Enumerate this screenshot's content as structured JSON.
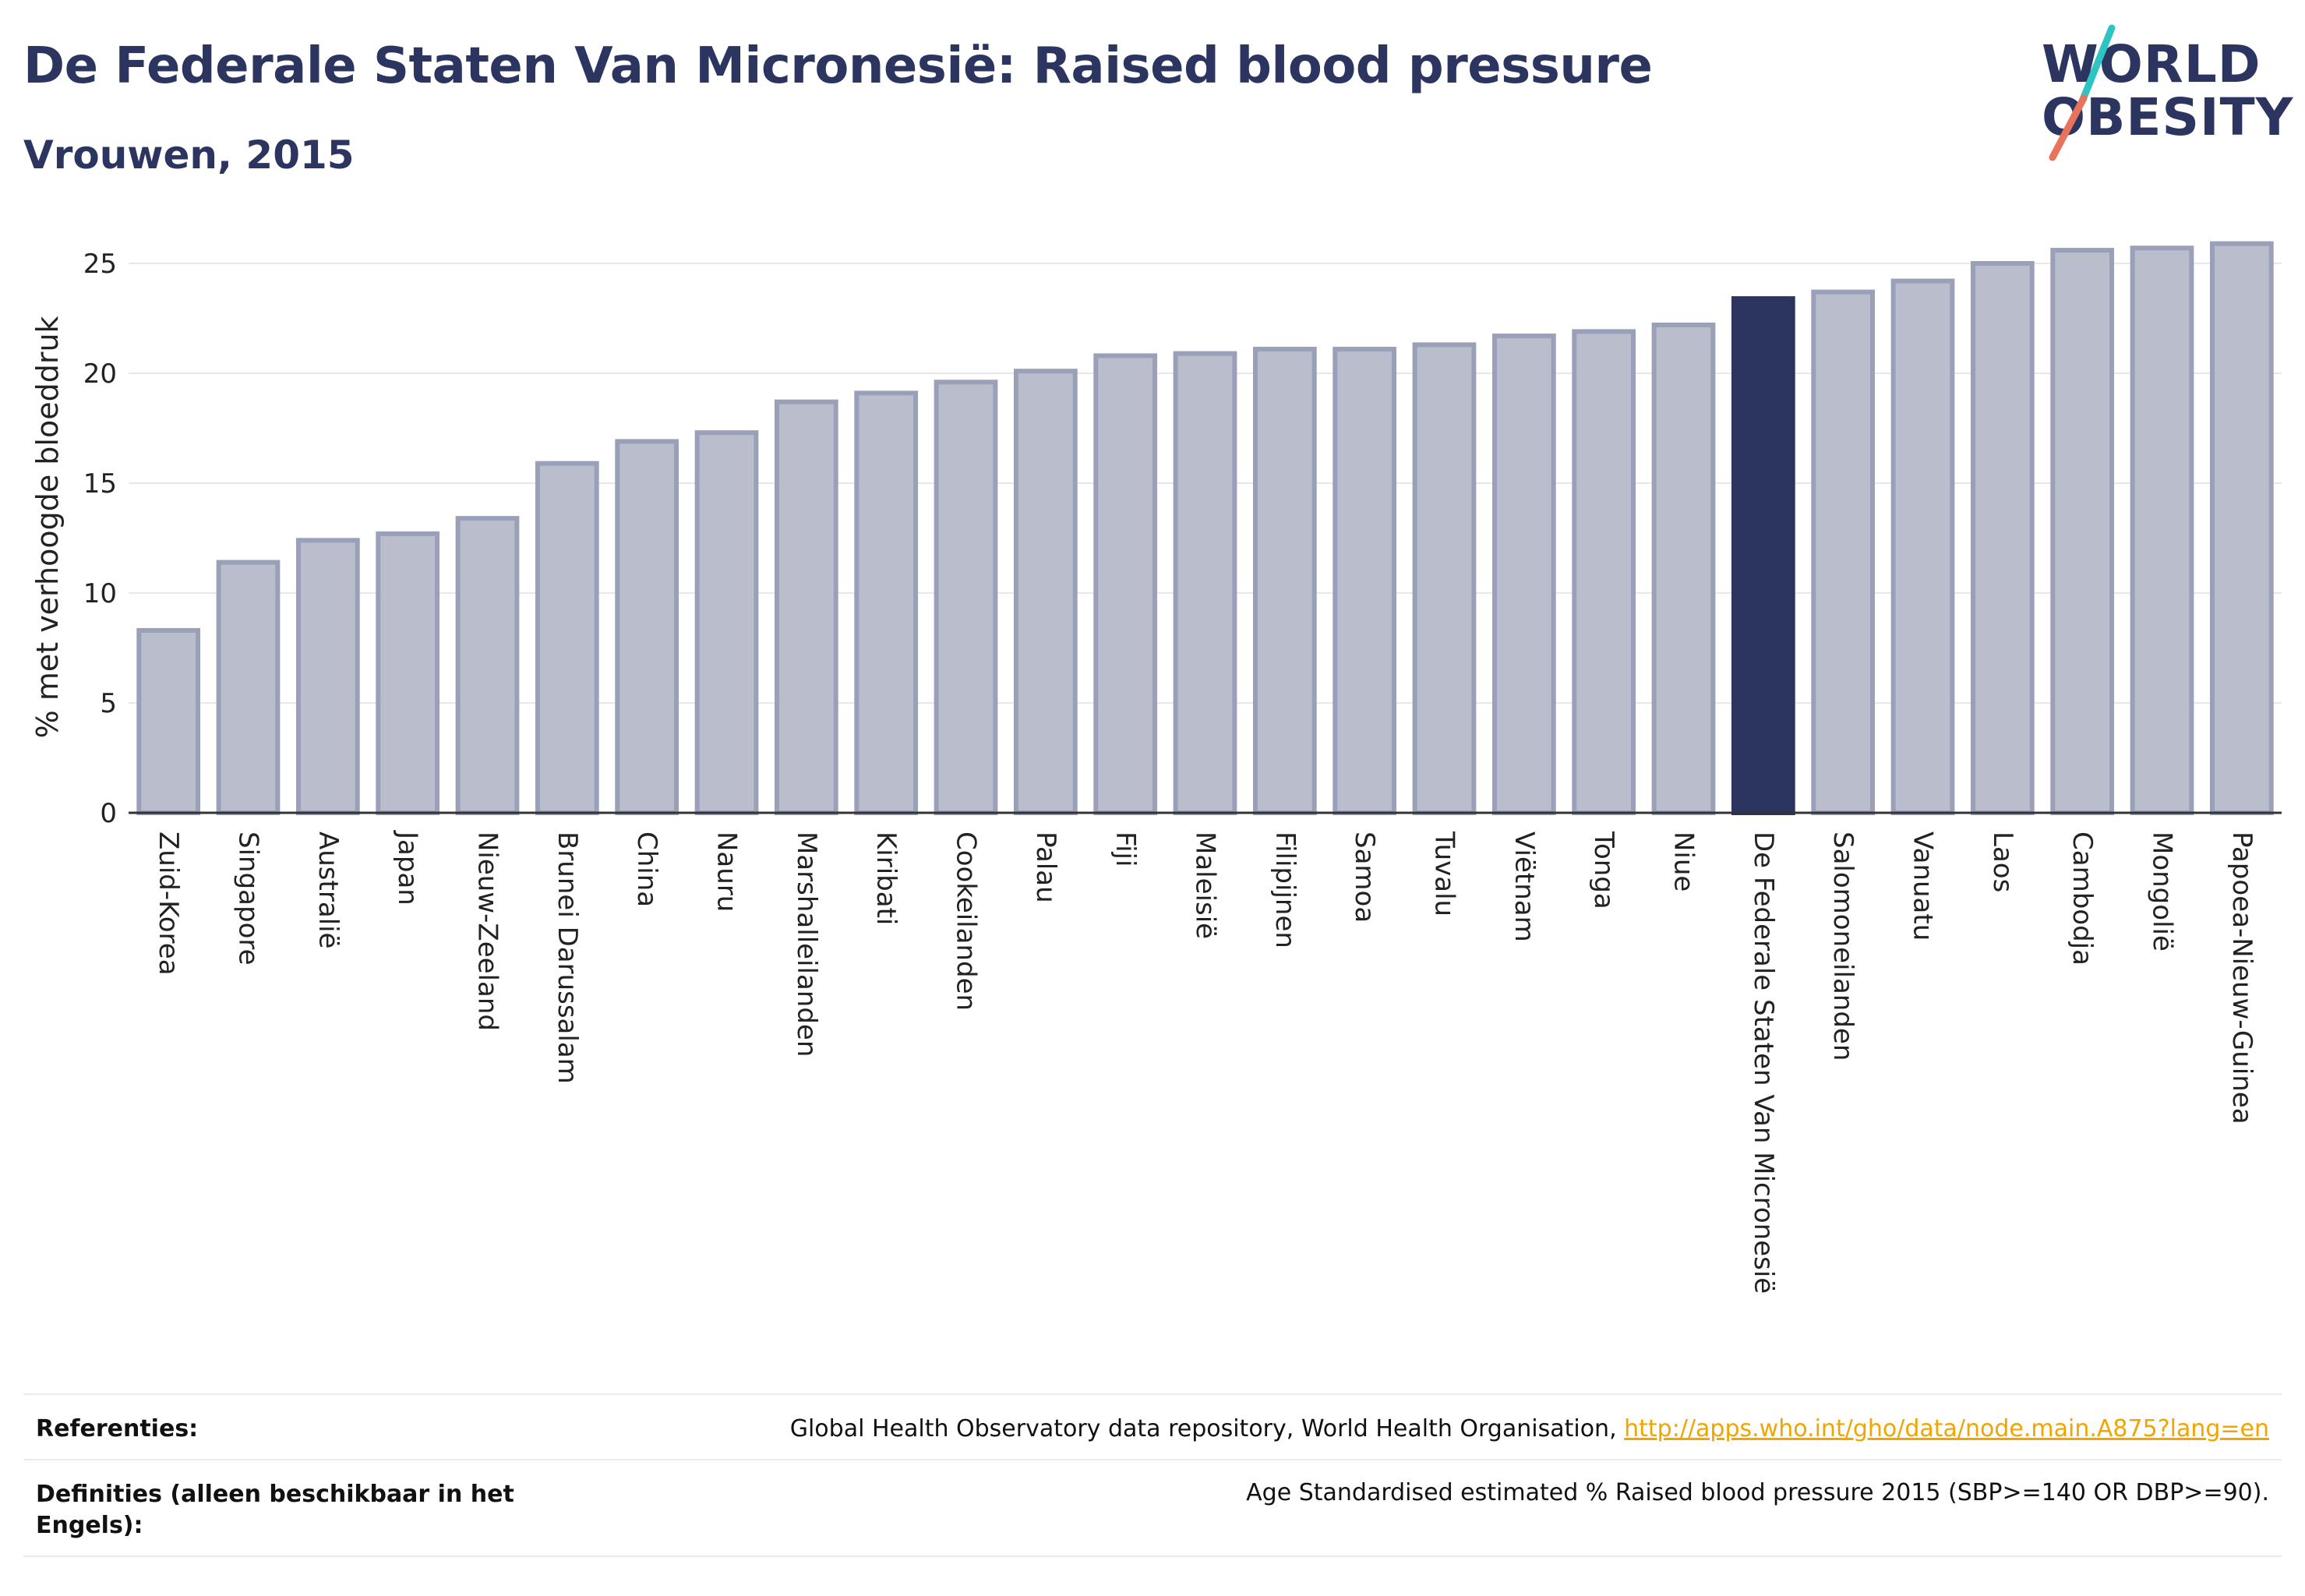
{
  "header": {
    "title": "De Federale Staten Van Micronesië: Raised blood pressure",
    "subtitle": "Vrouwen, 2015"
  },
  "logo": {
    "line1": "WORLD",
    "line2": "OBESITY",
    "colors": {
      "text": "#2b3560",
      "slash_top": "#2ec4c4",
      "slash_bottom": "#e8735a"
    }
  },
  "chart_data": {
    "type": "bar",
    "title": "De Federale Staten Van Micronesië: Raised blood pressure",
    "subtitle": "Vrouwen, 2015",
    "xlabel": "",
    "ylabel": "% met verhoogde bloeddruk",
    "ylim": [
      0,
      27
    ],
    "yticks": [
      0,
      5,
      10,
      15,
      20,
      25
    ],
    "grid": true,
    "highlight": "De Federale Staten Van Micronesië",
    "colors": {
      "bar": "#b9bdcc",
      "bar_border": "#9aa0b8",
      "highlight": "#2b3560",
      "grid": "#e6e8ee"
    },
    "categories": [
      "Zuid-Korea",
      "Singapore",
      "Australië",
      "Japan",
      "Nieuw-Zeeland",
      "Brunei Darussalam",
      "China",
      "Nauru",
      "Marshalleilanden",
      "Kiribati",
      "Cookeilanden",
      "Palau",
      "Fiji",
      "Maleisië",
      "Filipijnen",
      "Samoa",
      "Tuvalu",
      "Viëtnam",
      "Tonga",
      "Niue",
      "De Federale Staten Van Micronesië",
      "Salomoneilanden",
      "Vanuatu",
      "Laos",
      "Cambodja",
      "Mongolië",
      "Papoea-Nieuw-Guinea"
    ],
    "values": [
      8.3,
      11.4,
      12.4,
      12.7,
      13.4,
      15.9,
      16.9,
      17.3,
      18.7,
      19.1,
      19.6,
      20.1,
      20.8,
      20.9,
      21.1,
      21.1,
      21.3,
      21.7,
      21.9,
      22.2,
      23.4,
      23.7,
      24.2,
      25.0,
      25.6,
      25.7,
      25.9
    ]
  },
  "footer": {
    "references_label": "Referenties:",
    "references_text": "Global Health Observatory data repository, World Health Organisation, ",
    "references_link": "http://apps.who.int/gho/data/node.main.A875?lang=en",
    "definitions_label": "Definities (alleen beschikbaar in het Engels):",
    "definitions_text": "Age Standardised estimated % Raised blood pressure 2015 (SBP>=140 OR DBP>=90)."
  }
}
